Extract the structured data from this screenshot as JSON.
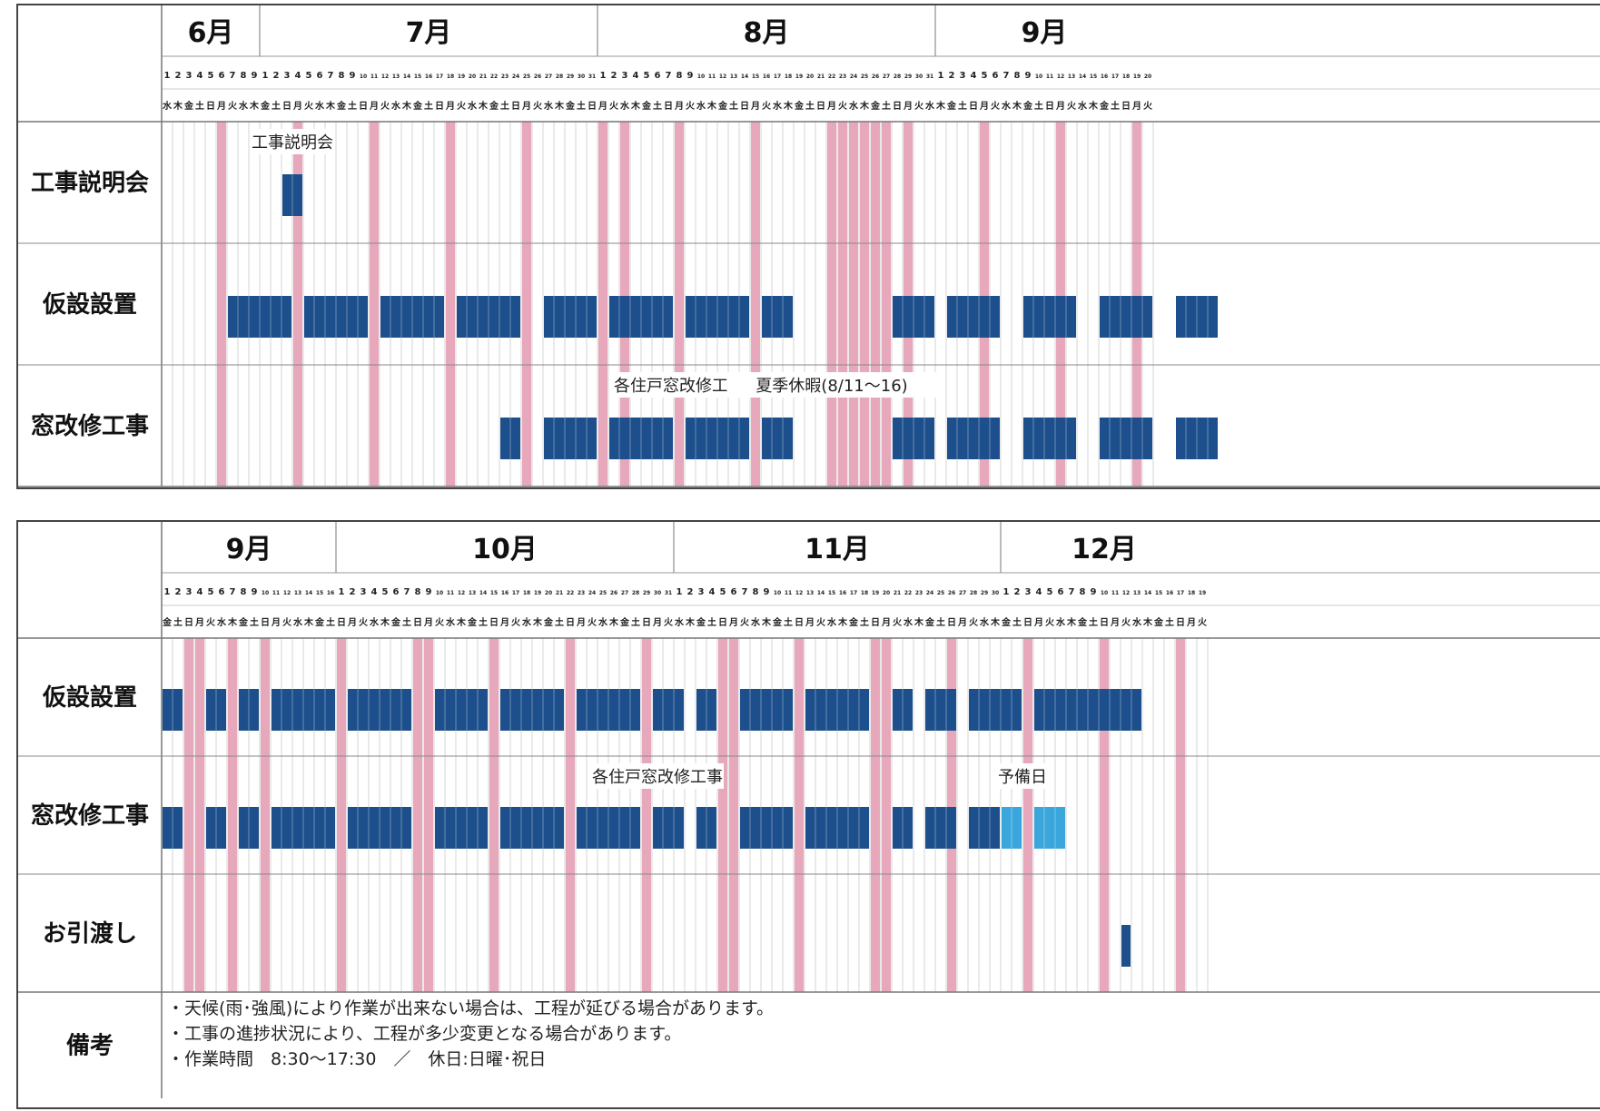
{
  "weekdays": [
    "月",
    "火",
    "水",
    "木",
    "金",
    "土",
    "日"
  ],
  "colors": {
    "holiday": "#e8a8bc",
    "work": "#1d4f8c",
    "reserve": "#3aa6dc",
    "grid": "#b8b8b8"
  },
  "panels": [
    {
      "start_weekday": 2,
      "months": [
        {
          "label": "6月",
          "days": 9
        },
        {
          "label": "7月",
          "days": 31
        },
        {
          "label": "8月",
          "days": 31
        },
        {
          "label": "9月",
          "days": 20
        }
      ],
      "holidays": [
        5,
        12,
        19,
        26,
        33,
        40,
        42,
        47,
        54,
        61,
        62,
        63,
        64,
        65,
        66,
        68,
        75,
        82,
        89
      ],
      "rows": [
        {
          "label": "工事説明会",
          "bars": [
            {
              "s": 11,
              "e": 12,
              "c": "work"
            }
          ],
          "notes": [
            {
              "text": "工事説明会",
              "day": 11.5
            }
          ]
        },
        {
          "label": "仮設設置",
          "bars": [
            {
              "s": 6,
              "e": 11
            },
            {
              "s": 13,
              "e": 18
            },
            {
              "s": 20,
              "e": 25
            },
            {
              "s": 27,
              "e": 32
            },
            {
              "s": 35,
              "e": 39
            },
            {
              "s": 41,
              "e": 46
            },
            {
              "s": 48,
              "e": 53
            },
            {
              "s": 55,
              "e": 57
            },
            {
              "s": 67,
              "e": 70
            },
            {
              "s": 72,
              "e": 76
            },
            {
              "s": 79,
              "e": 83
            },
            {
              "s": 86,
              "e": 90
            },
            {
              "s": 93,
              "e": 96
            }
          ],
          "notes": []
        },
        {
          "label": "窓改修工事",
          "bars": [
            {
              "s": 31,
              "e": 32
            },
            {
              "s": 35,
              "e": 39
            },
            {
              "s": 41,
              "e": 46
            },
            {
              "s": 48,
              "e": 53
            },
            {
              "s": 55,
              "e": 57
            },
            {
              "s": 67,
              "e": 70
            },
            {
              "s": 72,
              "e": 76
            },
            {
              "s": 79,
              "e": 83
            },
            {
              "s": 86,
              "e": 90
            },
            {
              "s": 93,
              "e": 96
            }
          ],
          "notes": [
            {
              "text": "各住戸窓改修工事",
              "day": 47
            },
            {
              "text": "夏季休暇(8/11～16)",
              "day": 61
            }
          ]
        }
      ]
    },
    {
      "start_weekday": 4,
      "months": [
        {
          "label": "9月",
          "days": 16
        },
        {
          "label": "10月",
          "days": 31
        },
        {
          "label": "11月",
          "days": 30
        },
        {
          "label": "12月",
          "days": 19
        }
      ],
      "holidays": [
        2,
        3,
        6,
        9,
        16,
        23,
        24,
        30,
        37,
        44,
        51,
        52,
        58,
        65,
        66,
        72,
        79,
        86,
        93
      ],
      "rows": [
        {
          "label": "仮設設置",
          "bars": [
            {
              "s": 0,
              "e": 1
            },
            {
              "s": 4,
              "e": 5
            },
            {
              "s": 7,
              "e": 8
            },
            {
              "s": 10,
              "e": 15
            },
            {
              "s": 17,
              "e": 22
            },
            {
              "s": 25,
              "e": 29
            },
            {
              "s": 31,
              "e": 36
            },
            {
              "s": 38,
              "e": 43
            },
            {
              "s": 45,
              "e": 47
            },
            {
              "s": 49,
              "e": 50
            },
            {
              "s": 53,
              "e": 57
            },
            {
              "s": 59,
              "e": 64
            },
            {
              "s": 67,
              "e": 68
            },
            {
              "s": 70,
              "e": 72
            },
            {
              "s": 74,
              "e": 78
            },
            {
              "s": 80,
              "e": 89
            }
          ],
          "notes": []
        },
        {
          "label": "窓改修工事",
          "bars": [
            {
              "s": 0,
              "e": 1
            },
            {
              "s": 4,
              "e": 5
            },
            {
              "s": 7,
              "e": 8
            },
            {
              "s": 10,
              "e": 15
            },
            {
              "s": 17,
              "e": 22
            },
            {
              "s": 25,
              "e": 29
            },
            {
              "s": 31,
              "e": 36
            },
            {
              "s": 38,
              "e": 43
            },
            {
              "s": 45,
              "e": 47
            },
            {
              "s": 49,
              "e": 50
            },
            {
              "s": 53,
              "e": 57
            },
            {
              "s": 59,
              "e": 64
            },
            {
              "s": 67,
              "e": 68
            },
            {
              "s": 70,
              "e": 72
            },
            {
              "s": 74,
              "e": 76
            },
            {
              "s": 77,
              "e": 78,
              "c": "reserve"
            },
            {
              "s": 80,
              "e": 82,
              "c": "reserve"
            }
          ],
          "notes": [
            {
              "text": "各住戸窓改修工事",
              "day": 45
            },
            {
              "text": "予備日",
              "day": 78.5
            }
          ]
        },
        {
          "label": "お引渡し",
          "bars": [
            {
              "s": 88,
              "e": 88
            }
          ],
          "notes": []
        }
      ],
      "remarks_label": "備考",
      "remarks": [
        "・天候(雨･強風)により作業が出来ない場合は、工程が延びる場合があります。",
        "・工事の進捗状況により、工程が多少変更となる場合があります。",
        "・作業時間　8:30～17:30　／　休日:日曜･祝日"
      ]
    }
  ]
}
